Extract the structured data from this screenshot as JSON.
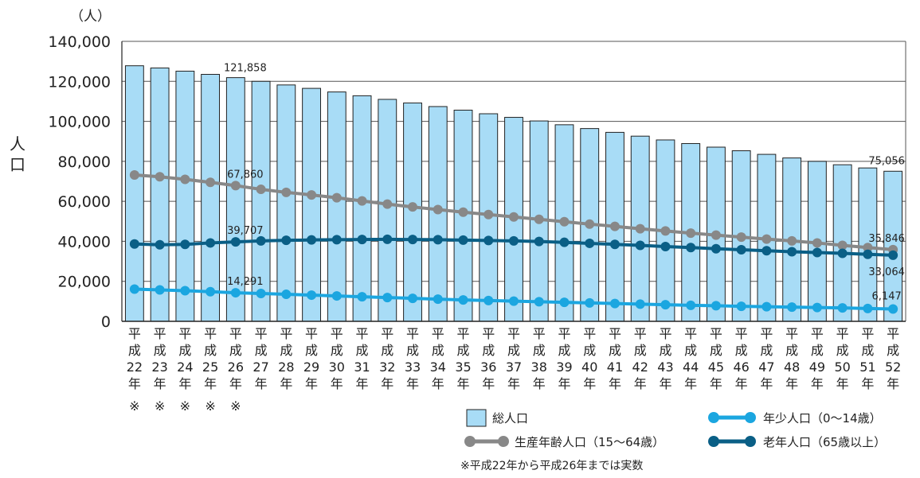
{
  "chart_data": {
    "type": "bar",
    "unit_label": "（人）",
    "ylabel": "人口",
    "ylim": [
      0,
      140000
    ],
    "yticks": [
      0,
      20000,
      40000,
      60000,
      80000,
      100000,
      120000,
      140000
    ],
    "ytick_labels": [
      "0",
      "20,000",
      "40,000",
      "60,000",
      "80,000",
      "100,000",
      "120,000",
      "140,000"
    ],
    "grid": true,
    "legend_position": "bottom-right",
    "categories": [
      {
        "era": "平",
        "sei": "成",
        "num": "22",
        "nen": "年",
        "mark": "※"
      },
      {
        "era": "平",
        "sei": "成",
        "num": "23",
        "nen": "年",
        "mark": "※"
      },
      {
        "era": "平",
        "sei": "成",
        "num": "24",
        "nen": "年",
        "mark": "※"
      },
      {
        "era": "平",
        "sei": "成",
        "num": "25",
        "nen": "年",
        "mark": "※"
      },
      {
        "era": "平",
        "sei": "成",
        "num": "26",
        "nen": "年",
        "mark": "※"
      },
      {
        "era": "平",
        "sei": "成",
        "num": "27",
        "nen": "年",
        "mark": ""
      },
      {
        "era": "平",
        "sei": "成",
        "num": "28",
        "nen": "年",
        "mark": ""
      },
      {
        "era": "平",
        "sei": "成",
        "num": "29",
        "nen": "年",
        "mark": ""
      },
      {
        "era": "平",
        "sei": "成",
        "num": "30",
        "nen": "年",
        "mark": ""
      },
      {
        "era": "平",
        "sei": "成",
        "num": "31",
        "nen": "年",
        "mark": ""
      },
      {
        "era": "平",
        "sei": "成",
        "num": "32",
        "nen": "年",
        "mark": ""
      },
      {
        "era": "平",
        "sei": "成",
        "num": "33",
        "nen": "年",
        "mark": ""
      },
      {
        "era": "平",
        "sei": "成",
        "num": "34",
        "nen": "年",
        "mark": ""
      },
      {
        "era": "平",
        "sei": "成",
        "num": "35",
        "nen": "年",
        "mark": ""
      },
      {
        "era": "平",
        "sei": "成",
        "num": "36",
        "nen": "年",
        "mark": ""
      },
      {
        "era": "平",
        "sei": "成",
        "num": "37",
        "nen": "年",
        "mark": ""
      },
      {
        "era": "平",
        "sei": "成",
        "num": "38",
        "nen": "年",
        "mark": ""
      },
      {
        "era": "平",
        "sei": "成",
        "num": "39",
        "nen": "年",
        "mark": ""
      },
      {
        "era": "平",
        "sei": "成",
        "num": "40",
        "nen": "年",
        "mark": ""
      },
      {
        "era": "平",
        "sei": "成",
        "num": "41",
        "nen": "年",
        "mark": ""
      },
      {
        "era": "平",
        "sei": "成",
        "num": "42",
        "nen": "年",
        "mark": ""
      },
      {
        "era": "平",
        "sei": "成",
        "num": "43",
        "nen": "年",
        "mark": ""
      },
      {
        "era": "平",
        "sei": "成",
        "num": "44",
        "nen": "年",
        "mark": ""
      },
      {
        "era": "平",
        "sei": "成",
        "num": "45",
        "nen": "年",
        "mark": ""
      },
      {
        "era": "平",
        "sei": "成",
        "num": "46",
        "nen": "年",
        "mark": ""
      },
      {
        "era": "平",
        "sei": "成",
        "num": "47",
        "nen": "年",
        "mark": ""
      },
      {
        "era": "平",
        "sei": "成",
        "num": "48",
        "nen": "年",
        "mark": ""
      },
      {
        "era": "平",
        "sei": "成",
        "num": "49",
        "nen": "年",
        "mark": ""
      },
      {
        "era": "平",
        "sei": "成",
        "num": "50",
        "nen": "年",
        "mark": ""
      },
      {
        "era": "平",
        "sei": "成",
        "num": "51",
        "nen": "年",
        "mark": ""
      },
      {
        "era": "平",
        "sei": "成",
        "num": "52",
        "nen": "年",
        "mark": ""
      }
    ],
    "series": [
      {
        "name": "総人口",
        "kind": "bar",
        "color": "#a8dcf6",
        "edge": "#222222",
        "values": [
          127800,
          126700,
          125100,
          123500,
          121858,
          120000,
          118200,
          116500,
          114700,
          112800,
          111000,
          109200,
          107400,
          105600,
          103800,
          102000,
          100200,
          98300,
          96400,
          94500,
          92600,
          90700,
          88900,
          87100,
          85300,
          83500,
          81700,
          80000,
          78300,
          76700,
          75056
        ]
      },
      {
        "name": "生産年齢人口（15〜64歳）",
        "kind": "line",
        "color": "#888888",
        "values": [
          73200,
          72300,
          71000,
          69500,
          67860,
          66000,
          64500,
          63200,
          61800,
          60200,
          58600,
          57200,
          55900,
          54600,
          53400,
          52200,
          51000,
          49800,
          48600,
          47500,
          46300,
          45200,
          44100,
          43100,
          42100,
          41100,
          40200,
          39200,
          38000,
          36900,
          35846
        ]
      },
      {
        "name": "老年人口（65歳以上）",
        "kind": "line",
        "color": "#0a5f86",
        "values": [
          38700,
          38300,
          38500,
          39200,
          39707,
          40200,
          40500,
          40700,
          40800,
          40900,
          41000,
          40900,
          40800,
          40600,
          40400,
          40200,
          39900,
          39500,
          39000,
          38500,
          38000,
          37400,
          36900,
          36300,
          35800,
          35300,
          34800,
          34400,
          34000,
          33500,
          33064
        ]
      },
      {
        "name": "年少人口（0〜14歳）",
        "kind": "line",
        "color": "#1ba6e0",
        "values": [
          16100,
          15700,
          15300,
          14800,
          14291,
          13900,
          13500,
          13100,
          12700,
          12300,
          11900,
          11500,
          11100,
          10700,
          10400,
          10100,
          9800,
          9500,
          9200,
          8900,
          8600,
          8300,
          8000,
          7800,
          7500,
          7300,
          7100,
          6900,
          6700,
          6400,
          6147
        ]
      }
    ],
    "annotations": [
      {
        "series": 0,
        "index": 4,
        "text": "121,858"
      },
      {
        "series": 1,
        "index": 4,
        "text": "67,860"
      },
      {
        "series": 2,
        "index": 4,
        "text": "39,707"
      },
      {
        "series": 3,
        "index": 4,
        "text": "14,291"
      },
      {
        "series": 0,
        "index": 30,
        "text": "75,056"
      },
      {
        "series": 1,
        "index": 30,
        "text": "35,846"
      },
      {
        "series": 2,
        "index": 30,
        "text": "33,064"
      },
      {
        "series": 3,
        "index": 30,
        "text": "6,147"
      }
    ],
    "legend": {
      "total": "総人口",
      "young": "年少人口（0〜14歳）",
      "working": "生産年齢人口（15〜64歳）",
      "elderly": "老年人口（65歳以上）"
    },
    "note": "※平成22年から平成26年までは実数"
  }
}
